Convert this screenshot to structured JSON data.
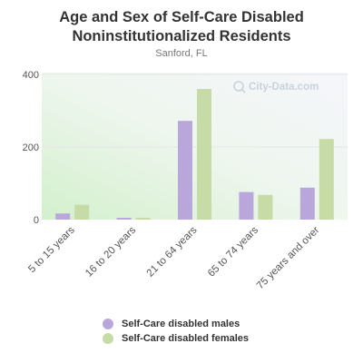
{
  "chart_data": {
    "type": "bar",
    "title": "Age and Sex of Self-Care Disabled Noninstitutionalized Residents",
    "subtitle": "Sanford, FL",
    "categories": [
      "5 to 15 years",
      "16 to 20 years",
      "21 to 64 years",
      "65 to 74 years",
      "75 years and over"
    ],
    "series": [
      {
        "name": "Self-Care disabled males",
        "color": "#b9a7db",
        "values": [
          17,
          5,
          272,
          76,
          88
        ]
      },
      {
        "name": "Self-Care disabled females",
        "color": "#c6dba6",
        "values": [
          41,
          5,
          360,
          68,
          222
        ]
      }
    ],
    "yticks": [
      0,
      200,
      400
    ],
    "ylim": [
      0,
      400
    ],
    "grid": true,
    "legend_position": "bottom",
    "watermark": "City-Data.com"
  }
}
